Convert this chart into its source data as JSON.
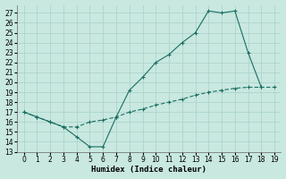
{
  "xlabel": "Humidex (Indice chaleur)",
  "xlim": [
    -0.5,
    19.5
  ],
  "ylim": [
    13,
    27.8
  ],
  "yticks": [
    13,
    14,
    15,
    16,
    17,
    18,
    19,
    20,
    21,
    22,
    23,
    24,
    25,
    26,
    27
  ],
  "xticks": [
    0,
    1,
    2,
    3,
    4,
    5,
    6,
    7,
    8,
    9,
    10,
    11,
    12,
    13,
    14,
    15,
    16,
    17,
    18,
    19
  ],
  "bg_color": "#c8e8e0",
  "grid_color": "#aed4cc",
  "line_color": "#1a6e62",
  "upper_x": [
    0,
    1,
    2,
    3,
    4,
    5,
    6,
    7,
    8,
    9,
    10,
    11,
    12,
    13,
    14,
    15,
    16,
    17,
    18
  ],
  "upper_y": [
    17.0,
    16.5,
    16.0,
    15.5,
    14.5,
    13.5,
    13.5,
    16.5,
    19.2,
    20.5,
    22.0,
    22.8,
    24.0,
    25.0,
    27.2,
    27.0,
    27.2,
    23.0,
    19.5
  ],
  "lower_x": [
    0,
    1,
    2,
    3,
    4,
    5,
    6,
    7,
    8,
    9,
    10,
    11,
    12,
    13,
    14,
    15,
    16,
    17,
    18,
    19
  ],
  "lower_y": [
    17.0,
    16.5,
    16.0,
    15.5,
    15.5,
    16.0,
    16.2,
    16.5,
    17.0,
    17.3,
    17.7,
    18.0,
    18.3,
    18.7,
    19.0,
    19.2,
    19.4,
    19.5,
    19.5,
    19.5
  ]
}
